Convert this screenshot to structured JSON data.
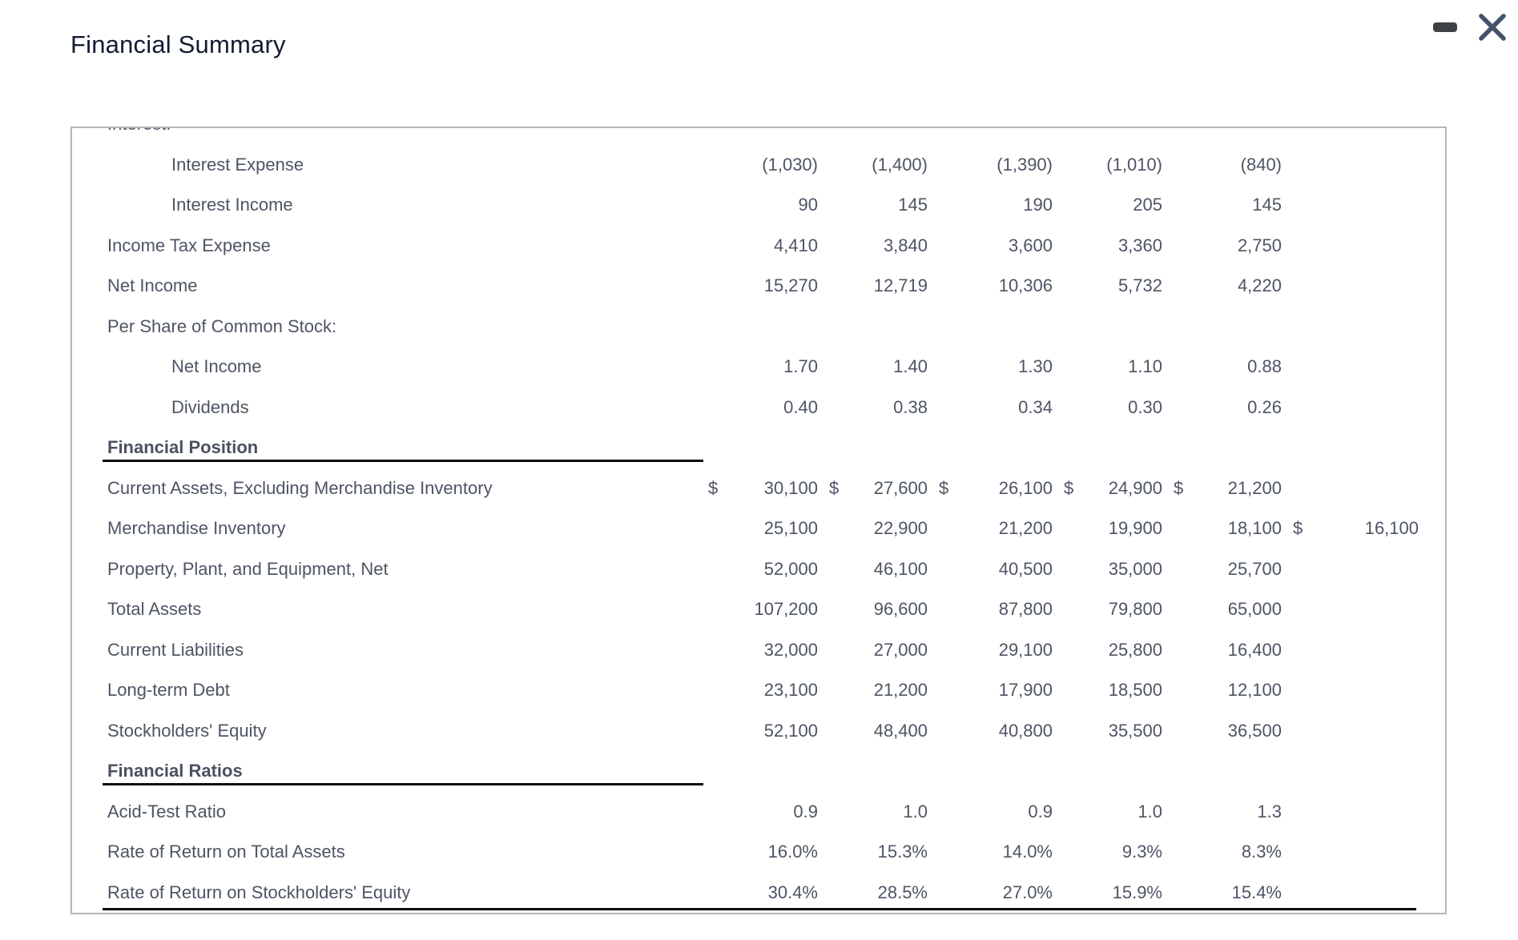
{
  "window": {
    "title": "Financial Summary",
    "controls": [
      {
        "name": "minimize",
        "icon": "minimize-icon"
      },
      {
        "name": "close",
        "icon": "close-icon"
      }
    ]
  },
  "colors": {
    "title_text": "#131c33",
    "body_text": "#4d5564",
    "table_border": "#b5b5b5",
    "rule_line": "#0d0d0d",
    "minimize_icon": "#3d4246",
    "close_icon": "#44516a"
  },
  "table": {
    "clipped_row_label": "Interest:",
    "rows": [
      {
        "label": "Interest Expense",
        "indent": true,
        "cells": [
          [
            "",
            "(1,030)"
          ],
          [
            "",
            "(1,400)"
          ],
          [
            "",
            "(1,390)"
          ],
          [
            "",
            "(1,010)"
          ],
          [
            "",
            "(840)"
          ],
          [
            "",
            ""
          ]
        ]
      },
      {
        "label": "Interest Income",
        "indent": true,
        "cells": [
          [
            "",
            "90"
          ],
          [
            "",
            "145"
          ],
          [
            "",
            "190"
          ],
          [
            "",
            "205"
          ],
          [
            "",
            "145"
          ],
          [
            "",
            ""
          ]
        ]
      },
      {
        "label": "Income Tax Expense",
        "cells": [
          [
            "",
            "4,410"
          ],
          [
            "",
            "3,840"
          ],
          [
            "",
            "3,600"
          ],
          [
            "",
            "3,360"
          ],
          [
            "",
            "2,750"
          ],
          [
            "",
            ""
          ]
        ]
      },
      {
        "label": "Net Income",
        "cells": [
          [
            "",
            "15,270"
          ],
          [
            "",
            "12,719"
          ],
          [
            "",
            "10,306"
          ],
          [
            "",
            "5,732"
          ],
          [
            "",
            "4,220"
          ],
          [
            "",
            ""
          ]
        ]
      },
      {
        "label": "Per Share of Common Stock:",
        "cells": []
      },
      {
        "label": "Net Income",
        "indent": true,
        "cells": [
          [
            "",
            "1.70"
          ],
          [
            "",
            "1.40"
          ],
          [
            "",
            "1.30"
          ],
          [
            "",
            "1.10"
          ],
          [
            "",
            "0.88"
          ],
          [
            "",
            ""
          ]
        ]
      },
      {
        "label": "Dividends",
        "indent": true,
        "cells": [
          [
            "",
            "0.40"
          ],
          [
            "",
            "0.38"
          ],
          [
            "",
            "0.34"
          ],
          [
            "",
            "0.30"
          ],
          [
            "",
            "0.26"
          ],
          [
            "",
            ""
          ]
        ]
      },
      {
        "label": "Financial Position",
        "section": true,
        "cells": []
      },
      {
        "label": "Current Assets, Excluding Merchandise Inventory",
        "cells": [
          [
            "$",
            "30,100"
          ],
          [
            "$",
            "27,600"
          ],
          [
            "$",
            "26,100"
          ],
          [
            "$",
            "24,900"
          ],
          [
            "$",
            "21,200"
          ],
          [
            "",
            ""
          ]
        ]
      },
      {
        "label": "Merchandise Inventory",
        "cells": [
          [
            "",
            "25,100"
          ],
          [
            "",
            "22,900"
          ],
          [
            "",
            "21,200"
          ],
          [
            "",
            "19,900"
          ],
          [
            "",
            "18,100"
          ],
          [
            "$",
            "16,100"
          ]
        ]
      },
      {
        "label": "Property, Plant, and Equipment, Net",
        "cells": [
          [
            "",
            "52,000"
          ],
          [
            "",
            "46,100"
          ],
          [
            "",
            "40,500"
          ],
          [
            "",
            "35,000"
          ],
          [
            "",
            "25,700"
          ],
          [
            "",
            ""
          ]
        ]
      },
      {
        "label": "Total Assets",
        "cells": [
          [
            "",
            "107,200"
          ],
          [
            "",
            "96,600"
          ],
          [
            "",
            "87,800"
          ],
          [
            "",
            "79,800"
          ],
          [
            "",
            "65,000"
          ],
          [
            "",
            ""
          ]
        ]
      },
      {
        "label": "Current Liabilities",
        "cells": [
          [
            "",
            "32,000"
          ],
          [
            "",
            "27,000"
          ],
          [
            "",
            "29,100"
          ],
          [
            "",
            "25,800"
          ],
          [
            "",
            "16,400"
          ],
          [
            "",
            ""
          ]
        ]
      },
      {
        "label": "Long-term Debt",
        "cells": [
          [
            "",
            "23,100"
          ],
          [
            "",
            "21,200"
          ],
          [
            "",
            "17,900"
          ],
          [
            "",
            "18,500"
          ],
          [
            "",
            "12,100"
          ],
          [
            "",
            ""
          ]
        ]
      },
      {
        "label": "Stockholders' Equity",
        "cells": [
          [
            "",
            "52,100"
          ],
          [
            "",
            "48,400"
          ],
          [
            "",
            "40,800"
          ],
          [
            "",
            "35,500"
          ],
          [
            "",
            "36,500"
          ],
          [
            "",
            ""
          ]
        ]
      },
      {
        "label": "Financial Ratios",
        "section": true,
        "cells": []
      },
      {
        "label": "Acid-Test Ratio",
        "cells": [
          [
            "",
            "0.9"
          ],
          [
            "",
            "1.0"
          ],
          [
            "",
            "0.9"
          ],
          [
            "",
            "1.0"
          ],
          [
            "",
            "1.3"
          ],
          [
            "",
            ""
          ]
        ]
      },
      {
        "label": "Rate of Return on Total Assets",
        "cells": [
          [
            "",
            "16.0%"
          ],
          [
            "",
            "15.3%"
          ],
          [
            "",
            "14.0%"
          ],
          [
            "",
            "9.3%"
          ],
          [
            "",
            "8.3%"
          ],
          [
            "",
            ""
          ]
        ]
      },
      {
        "label": "Rate of Return on Stockholders' Equity",
        "final_line": true,
        "cells": [
          [
            "",
            "30.4%"
          ],
          [
            "",
            "28.5%"
          ],
          [
            "",
            "27.0%"
          ],
          [
            "",
            "15.9%"
          ],
          [
            "",
            "15.4%"
          ],
          [
            "",
            ""
          ]
        ]
      }
    ]
  }
}
